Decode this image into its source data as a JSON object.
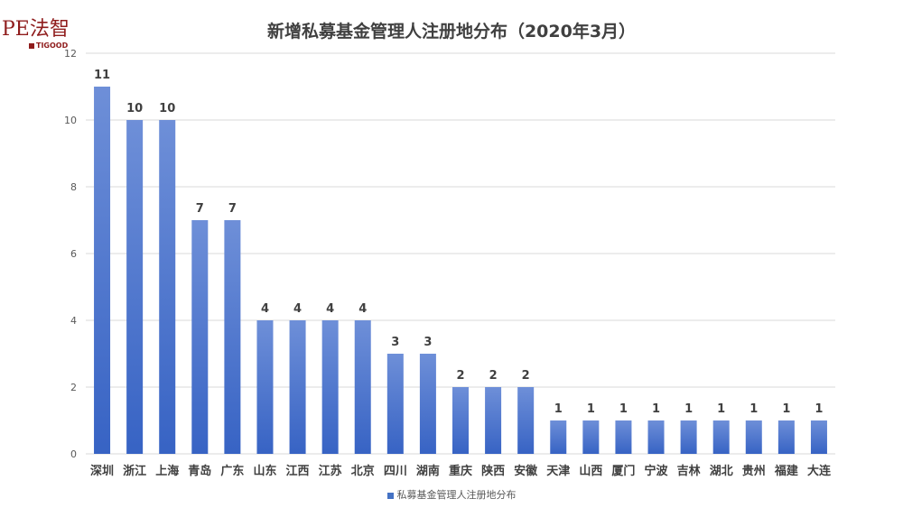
{
  "logo": {
    "text": "PE法智",
    "sub": "TIGOOD"
  },
  "colors": {
    "bar_top": "#6e8fd8",
    "bar_bottom": "#3763c4",
    "grid": "#d9d9d9",
    "text": "#404040"
  },
  "chart_data": {
    "type": "bar",
    "title": "新增私募基金管理人注册地分布（2020年3月）",
    "xlabel": "",
    "ylabel": "",
    "ylim": [
      0,
      12
    ],
    "yticks": [
      0,
      2,
      4,
      6,
      8,
      10,
      12
    ],
    "grid": true,
    "legend_position": "bottom",
    "categories": [
      "深圳",
      "浙江",
      "上海",
      "青岛",
      "广东",
      "山东",
      "江西",
      "江苏",
      "北京",
      "四川",
      "湖南",
      "重庆",
      "陕西",
      "安徽",
      "天津",
      "山西",
      "厦门",
      "宁波",
      "吉林",
      "湖北",
      "贵州",
      "福建",
      "大连"
    ],
    "series": [
      {
        "name": "私募基金管理人注册地分布",
        "values": [
          11,
          10,
          10,
          7,
          7,
          4,
          4,
          4,
          4,
          3,
          3,
          2,
          2,
          2,
          1,
          1,
          1,
          1,
          1,
          1,
          1,
          1,
          1
        ]
      }
    ]
  }
}
